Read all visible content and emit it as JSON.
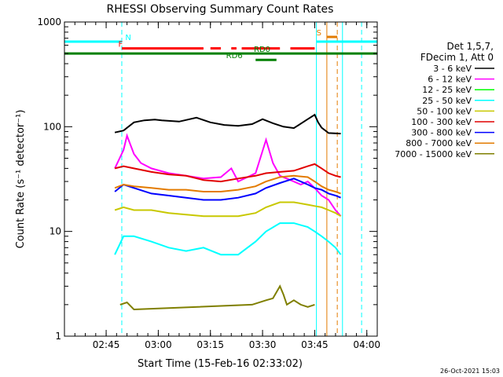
{
  "chart_data": {
    "type": "line",
    "title": "RHESSI Observing Summary Count Rates",
    "xlabel": "Start Time (15-Feb-16 02:33:02)",
    "ylabel": "Count Rate (s⁻¹ detector⁻¹)",
    "yscale": "log",
    "xlim_minutes": [
      0,
      90
    ],
    "ylim": [
      1,
      1000
    ],
    "x_tick_labels": [
      "02:45",
      "03:00",
      "03:15",
      "03:30",
      "03:45",
      "04:00"
    ],
    "x_tick_minutes": [
      12,
      27,
      42,
      57,
      72,
      87
    ],
    "y_tick_labels": [
      "1",
      "10",
      "100",
      "1000"
    ],
    "y_tick_values": [
      1,
      10,
      100,
      1000
    ],
    "legend_title": [
      "Det 1,5,7,",
      "FDecim 1, Att 0"
    ],
    "series": [
      {
        "name": "3 - 6 keV",
        "color": "#000000",
        "t": [
          14.5,
          17,
          20,
          23,
          26,
          28,
          33,
          38,
          42,
          46,
          50,
          54,
          57,
          60,
          63,
          66,
          70,
          72,
          73,
          74,
          76,
          79.5
        ],
        "values": [
          88,
          92,
          110,
          115,
          117,
          115,
          112,
          122,
          110,
          104,
          102,
          106,
          118,
          108,
          100,
          97,
          118,
          130,
          110,
          98,
          87,
          86
        ]
      },
      {
        "name": "6 - 12 keV",
        "color": "#ff00ff",
        "t": [
          14.5,
          17,
          18,
          20,
          22,
          25,
          30,
          35,
          40,
          45,
          48,
          50,
          55,
          58,
          60,
          62,
          65,
          68,
          70,
          72,
          74,
          76,
          78,
          79.5
        ],
        "values": [
          40,
          60,
          82,
          55,
          45,
          40,
          36,
          34,
          32,
          33,
          40,
          30,
          36,
          75,
          45,
          34,
          31,
          28,
          30,
          26,
          22,
          20,
          16,
          14
        ]
      },
      {
        "name": "12 - 25 keV",
        "color": "#00ff00",
        "t": [
          14.5,
          79.5
        ],
        "values": [
          null,
          null
        ]
      },
      {
        "name": "25 - 50 keV",
        "color": "#00ffff",
        "t": [
          14.5,
          17,
          20,
          25,
          30,
          35,
          40,
          45,
          50,
          55,
          58,
          62,
          66,
          70,
          72,
          74,
          76,
          78,
          79.5
        ],
        "values": [
          6,
          9,
          9,
          8,
          7,
          6.5,
          7,
          6,
          6,
          8,
          10,
          12,
          12,
          11,
          10,
          9,
          8,
          7,
          6
        ]
      },
      {
        "name": "50 - 100 keV",
        "color": "#c8c800",
        "t": [
          14.5,
          17,
          20,
          25,
          30,
          35,
          40,
          45,
          50,
          55,
          58,
          62,
          66,
          70,
          72,
          74,
          76,
          78,
          79.5
        ],
        "values": [
          16,
          17,
          16,
          16,
          15,
          14.5,
          14,
          14,
          14,
          15,
          17,
          19,
          19,
          18,
          17.5,
          17,
          16,
          15,
          14
        ]
      },
      {
        "name": "100 - 300 keV",
        "color": "#e10000",
        "t": [
          14.5,
          17,
          20,
          25,
          30,
          35,
          40,
          45,
          50,
          55,
          58,
          62,
          66,
          70,
          72,
          74,
          76,
          78,
          79.5
        ],
        "values": [
          40,
          42,
          40,
          37,
          35,
          34,
          31,
          30,
          32,
          34,
          36,
          37,
          38,
          42,
          44,
          40,
          36,
          34,
          33
        ]
      },
      {
        "name": "300 - 800 keV",
        "color": "#0000ff",
        "t": [
          14.5,
          17,
          20,
          25,
          30,
          35,
          40,
          45,
          50,
          55,
          58,
          62,
          66,
          70,
          72,
          74,
          76,
          78,
          79.5
        ],
        "values": [
          24,
          28,
          26,
          23,
          22,
          21,
          20,
          20,
          21,
          23,
          26,
          29,
          32,
          28,
          26,
          25,
          23,
          22,
          21
        ]
      },
      {
        "name": "800 - 7000 keV",
        "color": "#e37b00",
        "t": [
          14.5,
          17,
          20,
          25,
          30,
          35,
          40,
          45,
          50,
          55,
          58,
          62,
          66,
          70,
          72,
          74,
          76,
          78,
          79.5
        ],
        "values": [
          26,
          28,
          27,
          26,
          25,
          25,
          24,
          24,
          25,
          27,
          30,
          33,
          34,
          33,
          30,
          27,
          25,
          24,
          23
        ]
      },
      {
        "name": "7000 - 15000 keV",
        "color": "#7f7f00",
        "t": [
          16,
          18,
          20,
          54,
          58,
          60,
          62,
          63,
          64,
          66,
          68,
          70,
          72
        ],
        "values": [
          2,
          2.1,
          1.8,
          2,
          2.2,
          2.3,
          3,
          2.5,
          2,
          2.2,
          2,
          1.9,
          2
        ]
      }
    ],
    "flag_lines": [
      {
        "label": "N",
        "color": "#00ffff",
        "y_value": 650,
        "segments": [
          [
            0,
            16.5
          ],
          [
            72.5,
            90
          ]
        ],
        "label_at": 17.5
      },
      {
        "label": "F",
        "color": "#ff0000",
        "y_value": 560,
        "segments": [
          [
            16.5,
            40
          ],
          [
            42,
            45
          ],
          [
            48,
            49.5
          ],
          [
            51,
            62
          ],
          [
            65,
            72
          ]
        ],
        "label_at": 15.5
      },
      {
        "label": "S",
        "color": "#e37b00",
        "y_value": 720,
        "segments": [
          [
            75.5,
            78.5
          ]
        ],
        "label_at": 72.5
      },
      {
        "label": "RD0",
        "color": "#008000",
        "y_value": 500,
        "segments": [
          [
            0,
            90
          ]
        ],
        "label_at": 54.5
      },
      {
        "label": "RD6",
        "color": "#008000",
        "y_value": 435,
        "segments": [
          [
            55,
            61
          ]
        ],
        "label_at": 46.5
      }
    ],
    "vertical_lines": [
      {
        "color": "#00ffff",
        "style": "dashed",
        "x_minutes": [
          16.5,
          85.5
        ]
      },
      {
        "color": "#00ffff",
        "style": "solid",
        "x_minutes": [
          72.5,
          80
        ]
      },
      {
        "color": "#e37b00",
        "style": "solid",
        "x_minutes": [
          75.5
        ]
      },
      {
        "color": "#e37b00",
        "style": "dashed",
        "x_minutes": [
          78.5
        ]
      }
    ],
    "grid": false,
    "legend_position": "right"
  },
  "footer_date": "26-Oct-2021 15:03"
}
